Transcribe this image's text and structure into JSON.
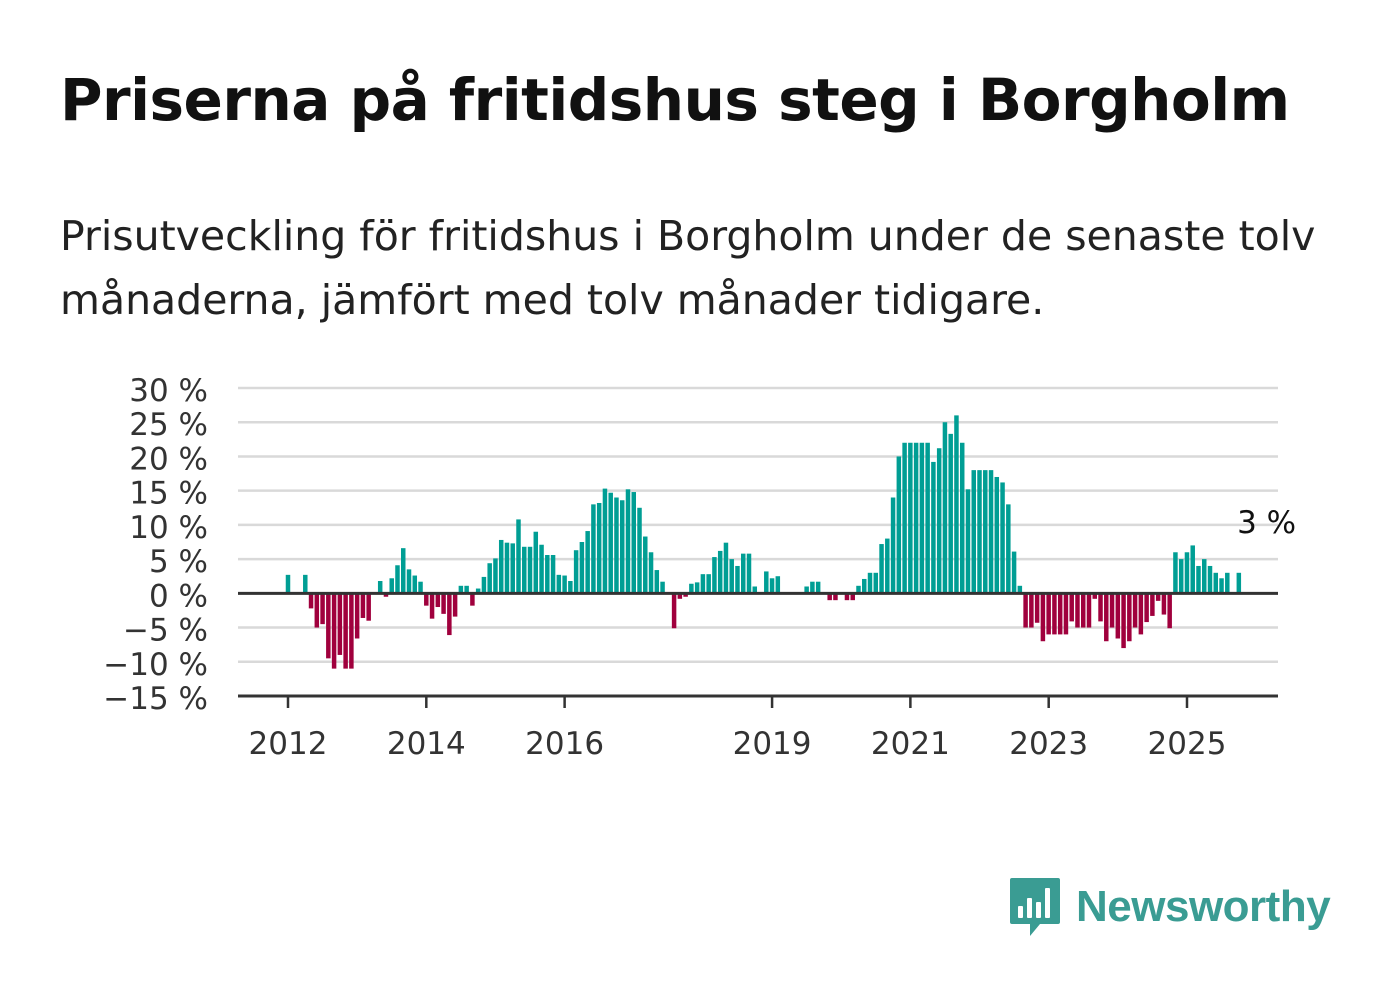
{
  "title": "Priserna på fritidshus steg i Borgholm",
  "subtitle": "Prisutveckling för fritidshus i Borgholm under de senaste tolv månaderna, jämfört med tolv månader tidigare.",
  "brand": {
    "name": "Newsworthy",
    "icon": "newsworthy-logo-icon"
  },
  "colors": {
    "positive": "#009e94",
    "negative": "#a0003d",
    "grid": "#d9d9d9",
    "axis": "#333333",
    "brand": "#3a9c93"
  },
  "chart_data": {
    "type": "bar",
    "title": "",
    "xlabel": "",
    "ylabel": "",
    "ylim": [
      -15,
      30
    ],
    "yticks": [
      30,
      25,
      20,
      15,
      10,
      5,
      0,
      -5,
      -10,
      -15
    ],
    "ytick_labels": [
      "30 %",
      "25 %",
      "20 %",
      "15 %",
      "10 %",
      "5 %",
      "0 %",
      "−5 %",
      "−10 %",
      "−15 %"
    ],
    "xticks": [
      2012,
      2014,
      2016,
      2019,
      2021,
      2023,
      2025
    ],
    "xlim": [
      2011.75,
      2026.75
    ],
    "grid": true,
    "annotation": {
      "text": "3 %",
      "x": 2025.58,
      "y": 3
    },
    "series": [
      {
        "x_start": 2012.0,
        "x_step": 0.08333,
        "values": [
          2.7,
          null,
          null,
          2.7,
          -2.2,
          -5,
          -4.5,
          -9.5,
          -11,
          -9,
          -11,
          -11,
          -6.6,
          -3.6,
          -4,
          null,
          1.8,
          -0.5,
          2.2,
          4.1,
          6.6,
          3.5,
          2.6,
          1.7,
          -1.8,
          -3.7,
          -2,
          -3,
          -6.1,
          -3.4,
          1.1,
          1.1,
          -1.8,
          0.7,
          2.4,
          4.4,
          5.1,
          7.8,
          7.4,
          7.3,
          10.8,
          6.8,
          6.8,
          9,
          7.1,
          5.6,
          5.6,
          2.7,
          2.6,
          1.8,
          6.3,
          7.5,
          9.1,
          13,
          13.2,
          15.3,
          14.7,
          14,
          13.6,
          15.2,
          14.8,
          12.5,
          8.3,
          6,
          3.4,
          1.7,
          null,
          -5.1,
          -0.8,
          -0.5,
          1.4,
          1.6,
          2.8,
          2.8,
          5.3,
          6.2,
          7.4,
          5,
          4,
          5.8,
          5.8,
          1,
          null,
          3.2,
          2.2,
          2.5,
          null,
          null,
          null,
          null,
          1,
          1.7,
          1.7,
          null,
          -1,
          -1,
          null,
          -1,
          -1,
          1.1,
          2.1,
          3,
          3,
          7.2,
          8,
          14,
          20,
          22,
          22,
          22,
          22,
          22,
          19.2,
          21.2,
          25,
          23.3,
          26,
          22,
          15.2,
          18,
          18,
          18,
          18,
          17,
          16.2,
          13,
          6.1,
          1.1,
          -5,
          -5,
          -4.3,
          -7,
          -6,
          -6,
          -6,
          -6,
          -4.1,
          -5,
          -5,
          -5,
          -0.8,
          -4.1,
          -7,
          -5,
          -6.6,
          -8,
          -7,
          -5,
          -6,
          -4.2,
          -3.3,
          -1.1,
          -3.1,
          -5.1,
          6,
          5,
          6,
          7,
          4,
          5,
          4,
          3,
          2.2,
          3,
          null,
          3
        ]
      }
    ]
  }
}
